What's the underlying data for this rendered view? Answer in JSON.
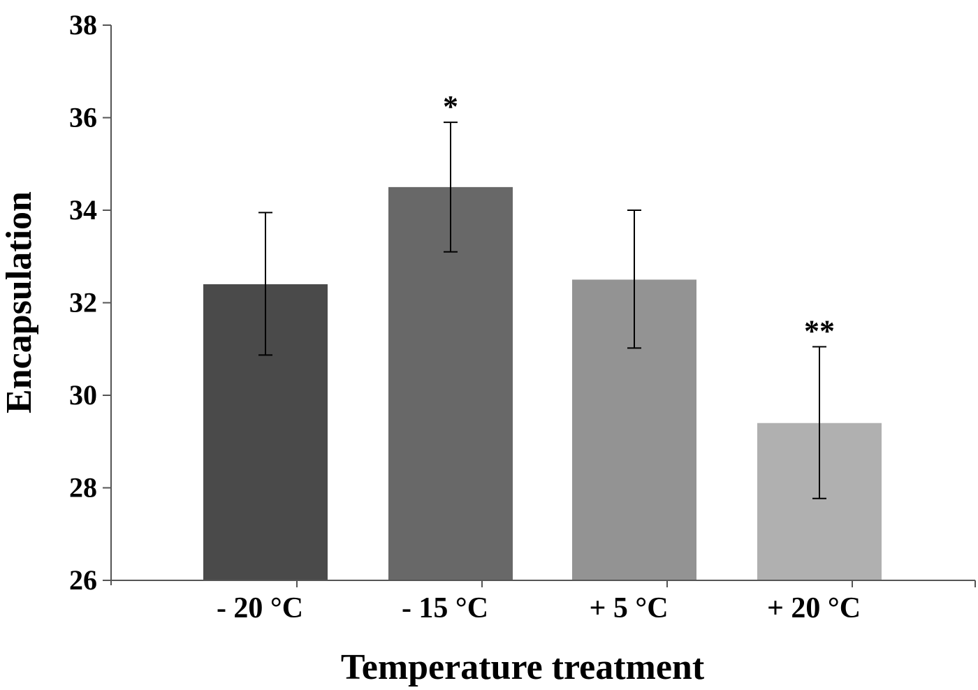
{
  "chart_data": {
    "type": "bar",
    "title": "",
    "xlabel": "Temperature treatment",
    "ylabel": "Encapsulation",
    "ylim": [
      26,
      38
    ],
    "yticks": [
      26,
      28,
      30,
      32,
      34,
      36,
      38
    ],
    "ytick_labels": [
      "26",
      "28",
      "30",
      "32",
      "34",
      "36",
      "38"
    ],
    "categories": [
      "- 20 °C",
      "- 15 °C",
      "+ 5 °C",
      "+ 20 °C"
    ],
    "values": [
      32.4,
      34.5,
      32.5,
      29.4
    ],
    "error_low": [
      30.87,
      33.1,
      31.02,
      27.77
    ],
    "error_high": [
      33.95,
      35.9,
      34.0,
      31.05
    ],
    "significance": [
      "",
      "*",
      "",
      "**"
    ],
    "bar_colors": [
      "#4a4a4a",
      "#686868",
      "#939393",
      "#b0b0b0"
    ],
    "grid": false,
    "legend": "none"
  }
}
